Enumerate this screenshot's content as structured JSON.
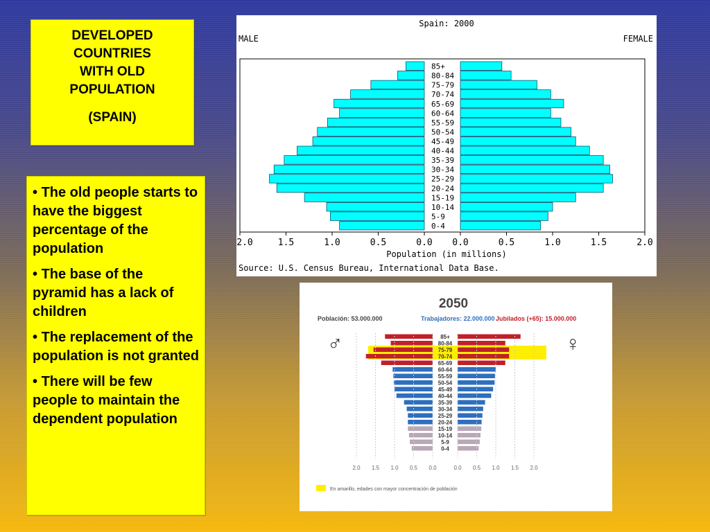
{
  "title_box": {
    "lines": [
      "DEVELOPED",
      "COUNTRIES",
      "WITH OLD",
      "POPULATION"
    ],
    "subtitle": "(SPAIN)"
  },
  "bullets": [
    "The old people starts to have the biggest percentage of the population",
    "The base of the pyramid has a lack of children",
    "The replacement of the population is not granted",
    "There will be few people to maintain the dependent population"
  ],
  "chart_data": [
    {
      "type": "bar",
      "title": "Spain: 2000",
      "left_label": "MALE",
      "right_label": "FEMALE",
      "xlabel": "Population (in millions)",
      "source": "Source: U.S. Census Bureau, International Data Base.",
      "xlim": [
        0,
        2.0
      ],
      "ticks": [
        "2.0",
        "1.5",
        "1.0",
        "0.5",
        "0.0",
        "0.0",
        "0.5",
        "1.0",
        "1.5",
        "2.0"
      ],
      "categories": [
        "85+",
        "80-84",
        "75-79",
        "70-74",
        "65-69",
        "60-64",
        "55-59",
        "50-54",
        "45-49",
        "40-44",
        "35-39",
        "30-34",
        "25-29",
        "20-24",
        "15-19",
        "10-14",
        "5-9",
        "0-4"
      ],
      "series": [
        {
          "name": "MALE",
          "values": [
            0.2,
            0.29,
            0.58,
            0.8,
            0.98,
            0.92,
            1.05,
            1.16,
            1.21,
            1.38,
            1.52,
            1.63,
            1.68,
            1.6,
            1.3,
            1.06,
            1.02,
            0.92
          ]
        },
        {
          "name": "FEMALE",
          "values": [
            0.45,
            0.55,
            0.83,
            0.98,
            1.12,
            0.98,
            1.09,
            1.2,
            1.25,
            1.4,
            1.55,
            1.62,
            1.65,
            1.55,
            1.25,
            1.0,
            0.95,
            0.87
          ]
        }
      ],
      "colors": {
        "bar": "#00ffff",
        "edge": "#003a5a"
      }
    },
    {
      "type": "bar",
      "title": "2050",
      "header": [
        {
          "label": "Población: 53.000.000",
          "color": "#444444"
        },
        {
          "label": "Trabajadores: 22.000.000",
          "color": "#2e6fbf"
        },
        {
          "label": "Jubilados (+65): 15.000.000",
          "color": "#c0202a"
        }
      ],
      "male_symbol": "♂",
      "female_symbol": "♀",
      "ticks": [
        "2.0",
        "1.5",
        "1.0",
        "0.5",
        "0.0",
        "0.0",
        "0.5",
        "1.0",
        "1.5",
        "2.0"
      ],
      "legend": "En amarillo, edades con mayor concentración de población",
      "categories": [
        "85+",
        "80-84",
        "75-79",
        "70-74",
        "65-69",
        "60-64",
        "55-59",
        "50-54",
        "45-49",
        "40-44",
        "35-39",
        "30-34",
        "25-29",
        "20-24",
        "15-19",
        "10-14",
        "5-9",
        "0-4"
      ],
      "highlighted": [
        "75-79",
        "70-74"
      ],
      "series": [
        {
          "name": "male",
          "values": [
            1.25,
            1.1,
            1.55,
            1.75,
            1.35,
            1.05,
            1.03,
            1.02,
            1.0,
            0.95,
            0.75,
            0.68,
            0.65,
            0.65,
            0.65,
            0.62,
            0.6,
            0.55
          ]
        },
        {
          "name": "female",
          "values": [
            1.65,
            1.25,
            1.35,
            1.35,
            1.25,
            1.0,
            0.98,
            0.97,
            0.93,
            0.88,
            0.72,
            0.67,
            0.65,
            0.63,
            0.62,
            0.6,
            0.58,
            0.55
          ]
        }
      ],
      "colors": {
        "old": "#c0202a",
        "worker": "#2e6fbf",
        "young": "#b8a8b8",
        "highlight": "#ffee00"
      }
    }
  ]
}
